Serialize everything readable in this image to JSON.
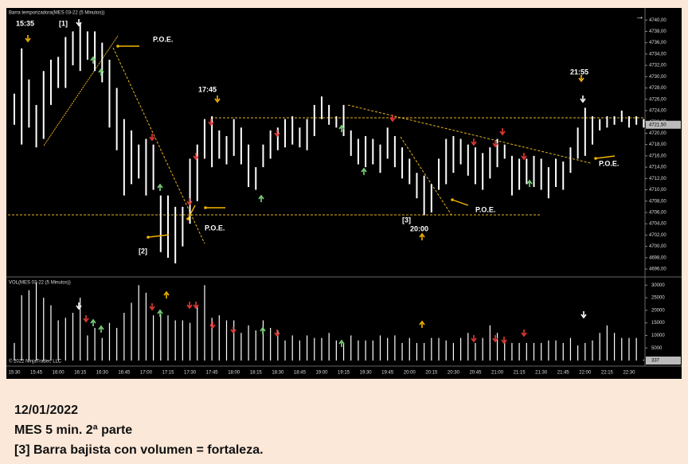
{
  "chart_data": [
    {
      "type": "hilo",
      "title": "Barra temporizadora(MES 03-22 (5 Minutos))",
      "color": "#ffffff",
      "categories": [
        "15:30",
        null,
        null,
        "15:45",
        null,
        null,
        "16:00",
        null,
        null,
        "16:15",
        null,
        null,
        "16:30",
        null,
        null,
        "16:45",
        null,
        null,
        "17:00",
        null,
        null,
        "17:15",
        null,
        null,
        "17:30",
        null,
        null,
        "17:45",
        null,
        null,
        "18:00",
        null,
        null,
        "18:15",
        null,
        null,
        "18:30",
        null,
        null,
        "18:45",
        null,
        null,
        "19:00",
        null,
        null,
        "19:15",
        null,
        null,
        "19:30",
        null,
        null,
        "19:45",
        null,
        null,
        "20:00",
        null,
        null,
        "20:15",
        null,
        null,
        "20:30",
        null,
        null,
        "20:45",
        null,
        null,
        "21:00",
        null,
        null,
        "21:15",
        null,
        null,
        "21:30",
        null,
        null,
        "21:45",
        null,
        null,
        "22:00",
        null,
        null,
        "22:15",
        null,
        null,
        "22:30",
        null,
        null
      ],
      "high": [
        4727,
        4735,
        4729.5,
        4725,
        4731,
        4733,
        4733.5,
        4737,
        4738,
        4739.5,
        4738,
        4738,
        4736,
        4733,
        4728,
        4722.5,
        4720.5,
        4718,
        4719,
        4718,
        4709,
        4709,
        4707,
        4707,
        4715.5,
        4718,
        4722.5,
        4723,
        4720.5,
        4719.5,
        4722.5,
        4721,
        4718,
        4714,
        4718,
        4720.5,
        4721,
        4722.5,
        4723,
        4721,
        4722.5,
        4725,
        4726.5,
        4725,
        4723,
        4725,
        4720.5,
        4719,
        4719.5,
        4719,
        4718,
        4721,
        4719.5,
        4717.5,
        4715.5,
        4713,
        4712.5,
        4711,
        4715.5,
        4719,
        4719.5,
        4719,
        4718,
        4717.5,
        4716.5,
        4717.5,
        4719,
        4718,
        4716,
        4715.5,
        4715.5,
        4716,
        4715.5,
        4714,
        4715.5,
        4715,
        4717.5,
        4721,
        4724.5,
        4723,
        4722.5,
        4723,
        4723,
        4724,
        4723,
        4723,
        4722.5
      ],
      "low": [
        4721.5,
        4718,
        4721,
        4717.5,
        4719,
        4725,
        4728,
        4728,
        4732,
        4731,
        4733,
        4731,
        4729,
        4721,
        4717,
        4709,
        4711,
        4712,
        4709,
        4710,
        4699,
        4698,
        4697,
        4700,
        4704,
        4708,
        4715.5,
        4714,
        4715.5,
        4714.5,
        4716,
        4714.5,
        4710.5,
        4710,
        4714,
        4715.5,
        4717,
        4717.5,
        4718,
        4717.5,
        4717,
        4719.5,
        4722.5,
        4721.5,
        4721,
        4719.5,
        4716,
        4714.5,
        4714,
        4714.5,
        4713,
        4715.5,
        4714,
        4712,
        4711,
        4708.5,
        4705.5,
        4706,
        4710,
        4711,
        4713,
        4714.5,
        4712.5,
        4711,
        4710,
        4712,
        4714,
        4715.5,
        4709,
        4710,
        4711,
        4710.5,
        4710,
        4708.5,
        4710.5,
        4710,
        4713,
        4715.5,
        4716,
        4718,
        4720.5,
        4721,
        4721.5,
        4722,
        4721,
        4721.5,
        4721
      ],
      "ylim": [
        4694.6,
        4742
      ],
      "yticks": [
        {
          "value": 4696,
          "label": "4696,00"
        },
        {
          "value": 4698,
          "label": "4698,00"
        },
        {
          "value": 4700,
          "label": "4700,00"
        },
        {
          "value": 4702,
          "label": "4702,00"
        },
        {
          "value": 4704,
          "label": "4704,00"
        },
        {
          "value": 4706,
          "label": "4706,00"
        },
        {
          "value": 4708,
          "label": "4708,00"
        },
        {
          "value": 4710,
          "label": "4710,00"
        },
        {
          "value": 4712,
          "label": "4712,00"
        },
        {
          "value": 4714,
          "label": "4714,00"
        },
        {
          "value": 4716,
          "label": "4716,00"
        },
        {
          "value": 4718,
          "label": "4718,00"
        },
        {
          "value": 4720,
          "label": "4720,00"
        },
        {
          "value": 4722,
          "label": "4722,00"
        },
        {
          "value": 4724,
          "label": "4724,00"
        },
        {
          "value": 4726,
          "label": "4726,00"
        },
        {
          "value": 4728,
          "label": "4728,00"
        },
        {
          "value": 4730,
          "label": "4730,00"
        },
        {
          "value": 4732,
          "label": "4732,00"
        },
        {
          "value": 4734,
          "label": "4734,00"
        },
        {
          "value": 4736,
          "label": "4736,00"
        },
        {
          "value": 4738,
          "label": "4738,00"
        },
        {
          "value": 4740,
          "label": "4740,00"
        }
      ],
      "last_price": {
        "value": 4721.5,
        "label": "4721,50"
      },
      "annotations": [
        "15:35",
        "[1]",
        "P.O.E.",
        "17:45",
        "P.O.E.",
        "[2]",
        "[3]",
        "20:00",
        "P.O.E.",
        "21:55",
        "P.O.E."
      ],
      "grid": false
    },
    {
      "type": "bar",
      "title": "VOL(MES 03-22 (5 Minutos))",
      "color": "#ffffff",
      "values": [
        7000,
        26000,
        28000,
        31000,
        25000,
        22000,
        16000,
        17000,
        19000,
        25000,
        10000,
        13000,
        9000,
        15000,
        13000,
        19000,
        23000,
        30000,
        27000,
        18000,
        18500,
        18000,
        16000,
        16000,
        15000,
        22000,
        30000,
        17000,
        18000,
        16000,
        16000,
        11000,
        14000,
        12000,
        16000,
        13000,
        12000,
        8000,
        10000,
        8000,
        10000,
        9000,
        9000,
        11000,
        8000,
        7000,
        10000,
        8000,
        8000,
        8000,
        10000,
        9000,
        10000,
        7000,
        9000,
        7000,
        7000,
        9000,
        9000,
        8000,
        7000,
        9000,
        11000,
        7000,
        9000,
        14000,
        11000,
        8000,
        7000,
        7000,
        7000,
        7000,
        7000,
        8000,
        8000,
        7000,
        9000,
        6000,
        7000,
        8000,
        11000,
        14000,
        11000,
        9000,
        9000,
        9000,
        337
      ],
      "ylim": [
        0,
        32000
      ],
      "yticks": [
        5000,
        10000,
        15000,
        20000,
        25000,
        30000
      ],
      "grid": false
    }
  ],
  "copyright": "© 2022 NinjaTrader, LLC",
  "footer": [
    "12/01/2022",
    "MES 5 min. 2ª parte",
    "[3] Barra bajista con volumen = fortaleza."
  ]
}
